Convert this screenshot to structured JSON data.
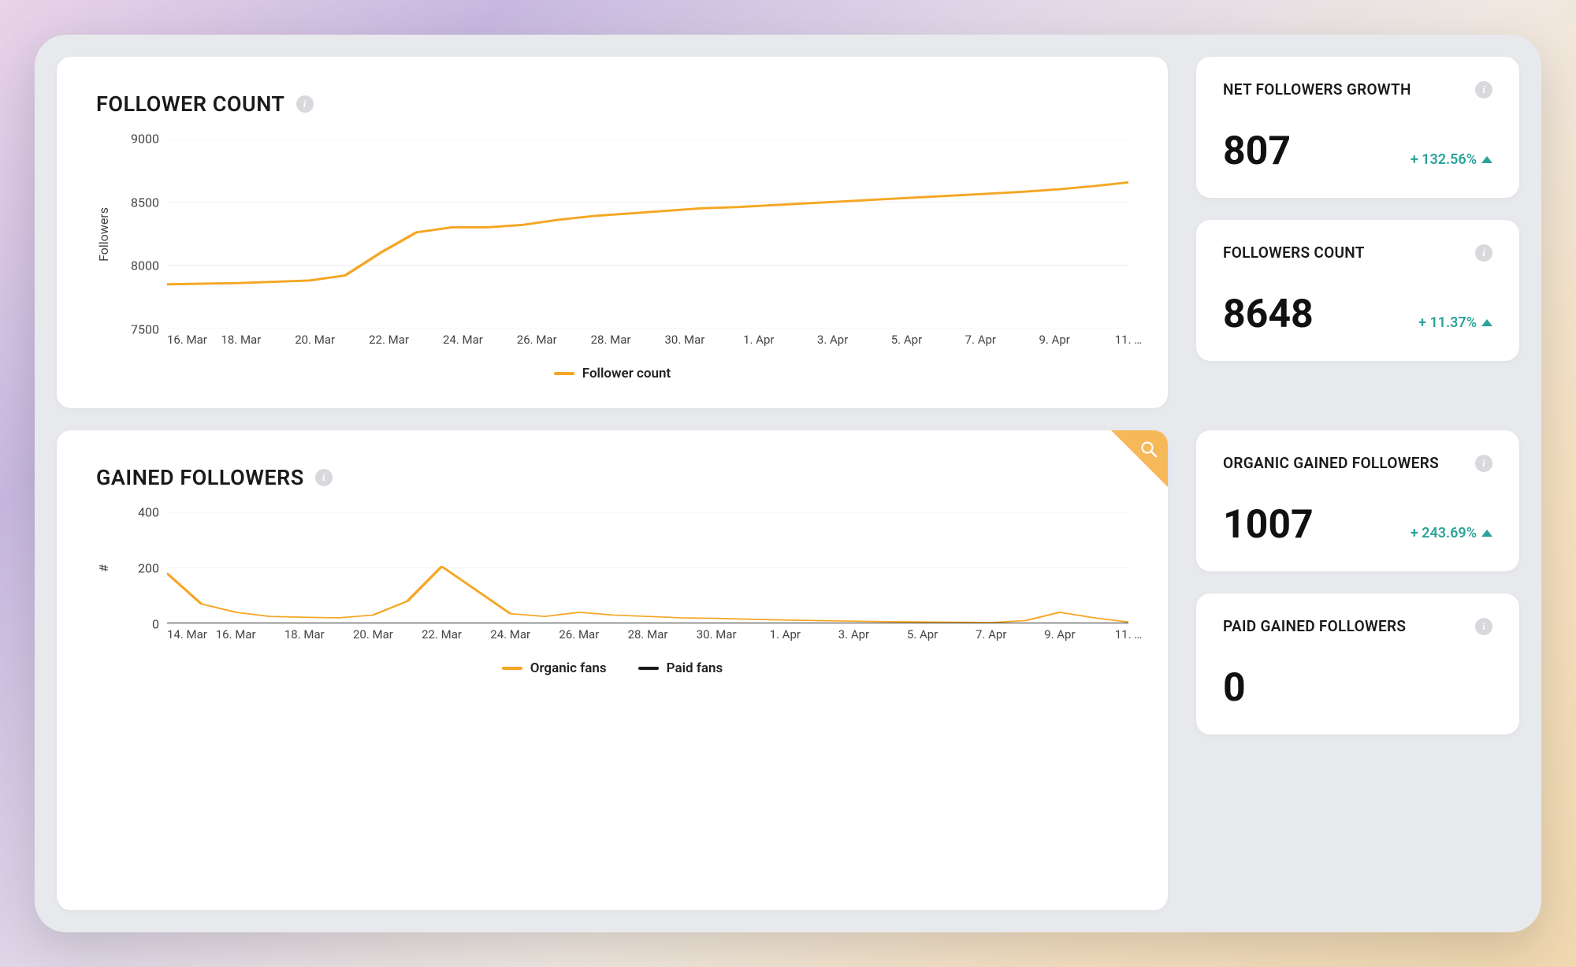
{
  "colors": {
    "card_bg": "#ffffff",
    "dashboard_bg": "#e8e9ed",
    "text_primary": "#1a1a1a",
    "text_secondary": "#444444",
    "positive": "#2aa39a",
    "grid": "#ececec",
    "series_orange": "#f5a623",
    "series_black": "#1a1a1a",
    "corner_badge": "#f5b95a"
  },
  "follower_chart": {
    "title": "FOLLOWER COUNT",
    "type": "line",
    "ylabel": "Followers",
    "ylim": [
      7500,
      9000
    ],
    "ytick_step": 500,
    "x_labels": [
      "16. Mar",
      "18. Mar",
      "20. Mar",
      "22. Mar",
      "24. Mar",
      "26. Mar",
      "28. Mar",
      "30. Mar",
      "1. Apr",
      "3. Apr",
      "5. Apr",
      "7. Apr",
      "9. Apr",
      "11. …"
    ],
    "series": [
      {
        "name": "Follower count",
        "color": "#f5a623",
        "line_width": 3,
        "points": [
          [
            0,
            7850
          ],
          [
            1,
            7855
          ],
          [
            2,
            7860
          ],
          [
            3,
            7870
          ],
          [
            4,
            7880
          ],
          [
            5,
            7920
          ],
          [
            6,
            8100
          ],
          [
            7,
            8260
          ],
          [
            8,
            8300
          ],
          [
            9,
            8300
          ],
          [
            10,
            8320
          ],
          [
            11,
            8360
          ],
          [
            12,
            8390
          ],
          [
            13,
            8410
          ],
          [
            14,
            8430
          ],
          [
            15,
            8450
          ],
          [
            16,
            8460
          ],
          [
            17,
            8475
          ],
          [
            18,
            8490
          ],
          [
            19,
            8505
          ],
          [
            20,
            8520
          ],
          [
            21,
            8535
          ],
          [
            22,
            8550
          ],
          [
            23,
            8565
          ],
          [
            24,
            8580
          ],
          [
            25,
            8600
          ],
          [
            26,
            8625
          ],
          [
            27,
            8655
          ]
        ]
      }
    ],
    "legend": [
      "Follower count"
    ]
  },
  "gained_chart": {
    "title": "GAINED FOLLOWERS",
    "type": "line",
    "ylabel": "#",
    "ylim": [
      0,
      400
    ],
    "ytick_step": 200,
    "x_labels": [
      "14. Mar",
      "16. Mar",
      "18. Mar",
      "20. Mar",
      "22. Mar",
      "24. Mar",
      "26. Mar",
      "28. Mar",
      "30. Mar",
      "1. Apr",
      "3. Apr",
      "5. Apr",
      "7. Apr",
      "9. Apr",
      "11. …"
    ],
    "series": [
      {
        "name": "Organic fans",
        "color": "#f5a623",
        "line_width": 3,
        "points": [
          [
            0,
            180
          ],
          [
            1,
            70
          ],
          [
            2,
            40
          ],
          [
            3,
            25
          ],
          [
            4,
            22
          ],
          [
            5,
            20
          ],
          [
            6,
            30
          ],
          [
            7,
            80
          ],
          [
            8,
            205
          ],
          [
            9,
            120
          ],
          [
            10,
            35
          ],
          [
            11,
            25
          ],
          [
            12,
            40
          ],
          [
            13,
            30
          ],
          [
            14,
            25
          ],
          [
            15,
            20
          ],
          [
            16,
            18
          ],
          [
            17,
            15
          ],
          [
            18,
            12
          ],
          [
            19,
            10
          ],
          [
            20,
            8
          ],
          [
            21,
            6
          ],
          [
            22,
            5
          ],
          [
            23,
            4
          ],
          [
            24,
            3
          ],
          [
            25,
            10
          ],
          [
            26,
            40
          ],
          [
            27,
            20
          ],
          [
            28,
            5
          ]
        ]
      },
      {
        "name": "Paid fans",
        "color": "#1a1a1a",
        "line_width": 3,
        "points": [
          [
            0,
            0
          ],
          [
            1,
            0
          ],
          [
            2,
            0
          ],
          [
            3,
            0
          ],
          [
            4,
            0
          ],
          [
            5,
            0
          ],
          [
            6,
            0
          ],
          [
            7,
            0
          ],
          [
            8,
            0
          ],
          [
            9,
            0
          ],
          [
            10,
            0
          ],
          [
            11,
            0
          ],
          [
            12,
            0
          ],
          [
            13,
            0
          ],
          [
            14,
            0
          ],
          [
            15,
            0
          ],
          [
            16,
            0
          ],
          [
            17,
            0
          ],
          [
            18,
            0
          ],
          [
            19,
            0
          ],
          [
            20,
            0
          ],
          [
            21,
            0
          ],
          [
            22,
            0
          ],
          [
            23,
            0
          ],
          [
            24,
            0
          ],
          [
            25,
            0
          ],
          [
            26,
            0
          ],
          [
            27,
            0
          ],
          [
            28,
            0
          ]
        ]
      }
    ],
    "legend": [
      "Organic fans",
      "Paid fans"
    ]
  },
  "stats": {
    "row1": [
      {
        "title": "NET FOLLOWERS GROWTH",
        "value": "807",
        "change": "+ 132.56%",
        "change_color": "#2aa39a",
        "direction": "up"
      },
      {
        "title": "FOLLOWERS COUNT",
        "value": "8648",
        "change": "+ 11.37%",
        "change_color": "#2aa39a",
        "direction": "up"
      }
    ],
    "row2": [
      {
        "title": "ORGANIC GAINED FOLLOWERS",
        "value": "1007",
        "change": "+ 243.69%",
        "change_color": "#2aa39a",
        "direction": "up"
      },
      {
        "title": "PAID GAINED FOLLOWERS",
        "value": "0",
        "change": "",
        "change_color": "",
        "direction": ""
      }
    ]
  }
}
